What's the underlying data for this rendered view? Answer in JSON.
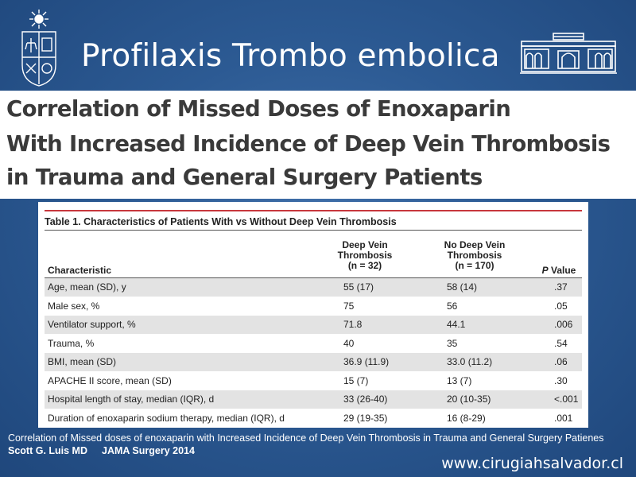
{
  "slide": {
    "title": "Profilaxis Trombo embolica",
    "website": "www.cirugiahsalvador.cl"
  },
  "paper": {
    "line1": "Correlation of Missed Doses of Enoxaparin",
    "line2": "With Increased Incidence of Deep Vein Thrombosis",
    "line3": "in Trauma and General Surgery Patients"
  },
  "table": {
    "caption": "Table 1. Characteristics of Patients With vs Without Deep Vein Thrombosis",
    "headers": {
      "characteristic": "Characteristic",
      "dvt_line1": "Deep Vein",
      "dvt_line2": "Thrombosis",
      "dvt_line3": "(n = 32)",
      "nodvt_line1": "No Deep Vein",
      "nodvt_line2": "Thrombosis",
      "nodvt_line3": "(n = 170)",
      "p_italic": "P",
      "p_rest": " Value"
    },
    "rows": [
      {
        "characteristic": "Age, mean (SD), y",
        "dvt": "55 (17)",
        "nodvt": "58 (14)",
        "p": ".37"
      },
      {
        "characteristic": "Male sex, %",
        "dvt": "75",
        "nodvt": "56",
        "p": ".05"
      },
      {
        "characteristic": "Ventilator support, %",
        "dvt": "71.8",
        "nodvt": "44.1",
        "p": ".006"
      },
      {
        "characteristic": "Trauma, %",
        "dvt": "40",
        "nodvt": "35",
        "p": ".54"
      },
      {
        "characteristic": "BMI, mean (SD)",
        "dvt": "36.9 (11.9)",
        "nodvt": "33.0 (11.2)",
        "p": ".06"
      },
      {
        "characteristic": "APACHE II score, mean (SD)",
        "dvt": "15 (7)",
        "nodvt": "13 (7)",
        "p": ".30"
      },
      {
        "characteristic": "Hospital length of stay, median (IQR), d",
        "dvt": "33 (26-40)",
        "nodvt": "20 (10-35)",
        "p": "<.001"
      },
      {
        "characteristic": "Duration of enoxaparin sodium therapy, median (IQR), d",
        "dvt": "29 (19-35)",
        "nodvt": "16 (8-29)",
        "p": ".001"
      }
    ]
  },
  "reference": {
    "title": "Correlation of Missed doses of enoxaparin with Increased Incidence of Deep Vein Thrombosis in Trauma and General Surgery Patienes",
    "author": "Scott G. Luis MD",
    "journal": "JAMA Surgery 2014"
  },
  "colors": {
    "background": "#2c5a93",
    "table_rule": "#c8373d",
    "row_shade": "#e3e3e3"
  },
  "icons": {
    "left_logo": "university-crest-icon",
    "right_logo": "hospital-building-icon"
  }
}
